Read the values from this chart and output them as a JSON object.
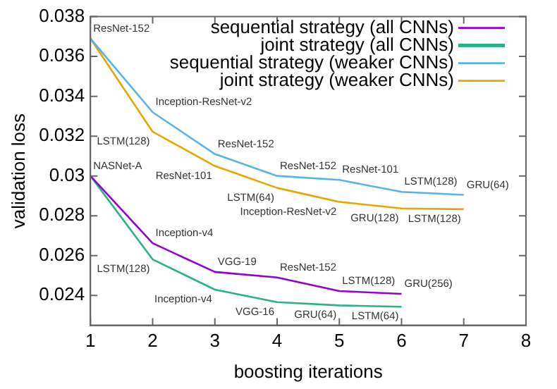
{
  "chart_data": {
    "type": "line",
    "xlabel": "boosting iterations",
    "ylabel": "validation loss",
    "x": [
      1,
      2,
      3,
      4,
      5,
      6,
      7
    ],
    "series": [
      {
        "name": "sequential strategy (all CNNs)",
        "color": "#9400d3",
        "values": [
          0.03,
          0.02662,
          0.02518,
          0.0249,
          0.02422,
          0.02408,
          null
        ]
      },
      {
        "name": "joint strategy (all CNNs)",
        "color": "#2ab08c",
        "values": [
          0.03,
          0.02581,
          0.02429,
          0.02366,
          0.0235,
          0.02343,
          null
        ]
      },
      {
        "name": "sequential strategy (weaker CNNs)",
        "color": "#56b4e9",
        "values": [
          0.0369,
          0.0332,
          0.0311,
          0.03,
          0.0298,
          0.0292,
          0.02905
        ]
      },
      {
        "name": "joint strategy (weaker CNNs)",
        "color": "#e6a700",
        "values": [
          0.0369,
          0.03222,
          0.0305,
          0.0294,
          0.0287,
          0.02837,
          0.02833
        ]
      }
    ],
    "xlim": [
      1,
      8
    ],
    "xticks": [
      1,
      2,
      3,
      4,
      5,
      6,
      7,
      8
    ],
    "ylim": [
      0.0225,
      0.038
    ],
    "yticks": [
      0.024,
      0.026,
      0.028,
      {
        "value": 0.03,
        "label": "0.03"
      },
      0.032,
      0.034,
      0.036,
      0.038
    ],
    "grid": false,
    "legend": "top right",
    "marker": "none",
    "line_style": "solid",
    "annotations": [
      {
        "text": "ResNet-152",
        "x": 1,
        "y": 0.0369
      },
      {
        "text": "Inception-ResNet-v2",
        "x": 2,
        "y": 0.0332
      },
      {
        "text": "LSTM(128)",
        "x": 2,
        "y": 0.03222
      },
      {
        "text": "NASNet-A",
        "x": 1,
        "y": 0.03
      },
      {
        "text": "ResNet-101",
        "x": 3,
        "y": 0.0305
      },
      {
        "text": "ResNet-152",
        "x": 3,
        "y": 0.0311
      },
      {
        "text": "ResNet-152",
        "x": 4,
        "y": 0.03
      },
      {
        "text": "ResNet-101",
        "x": 5,
        "y": 0.0298
      },
      {
        "text": "LSTM(128)",
        "x": 6,
        "y": 0.0292
      },
      {
        "text": "GRU(64)",
        "x": 7,
        "y": 0.02905
      },
      {
        "text": "LSTM(64)",
        "x": 4,
        "y": 0.0294
      },
      {
        "text": "Inception-ResNet-v2",
        "x": 5,
        "y": 0.0287
      },
      {
        "text": "GRU(128)",
        "x": 6,
        "y": 0.02837
      },
      {
        "text": "LSTM(128)",
        "x": 7,
        "y": 0.02833
      },
      {
        "text": "Inception-v4",
        "x": 2,
        "y": 0.02662
      },
      {
        "text": "LSTM(128)",
        "x": 2,
        "y": 0.02581
      },
      {
        "text": "VGG-19",
        "x": 3,
        "y": 0.02518
      },
      {
        "text": "Inception-v4",
        "x": 3,
        "y": 0.02429
      },
      {
        "text": "VGG-16",
        "x": 4,
        "y": 0.02366
      },
      {
        "text": "ResNet-152",
        "x": 4,
        "y": 0.0249
      },
      {
        "text": "LSTM(128)",
        "x": 5,
        "y": 0.02422
      },
      {
        "text": "GRU(256)",
        "x": 6,
        "y": 0.02408
      },
      {
        "text": "GRU(64)",
        "x": 5,
        "y": 0.0235
      },
      {
        "text": "LSTM(64)",
        "x": 6,
        "y": 0.02343
      }
    ]
  }
}
